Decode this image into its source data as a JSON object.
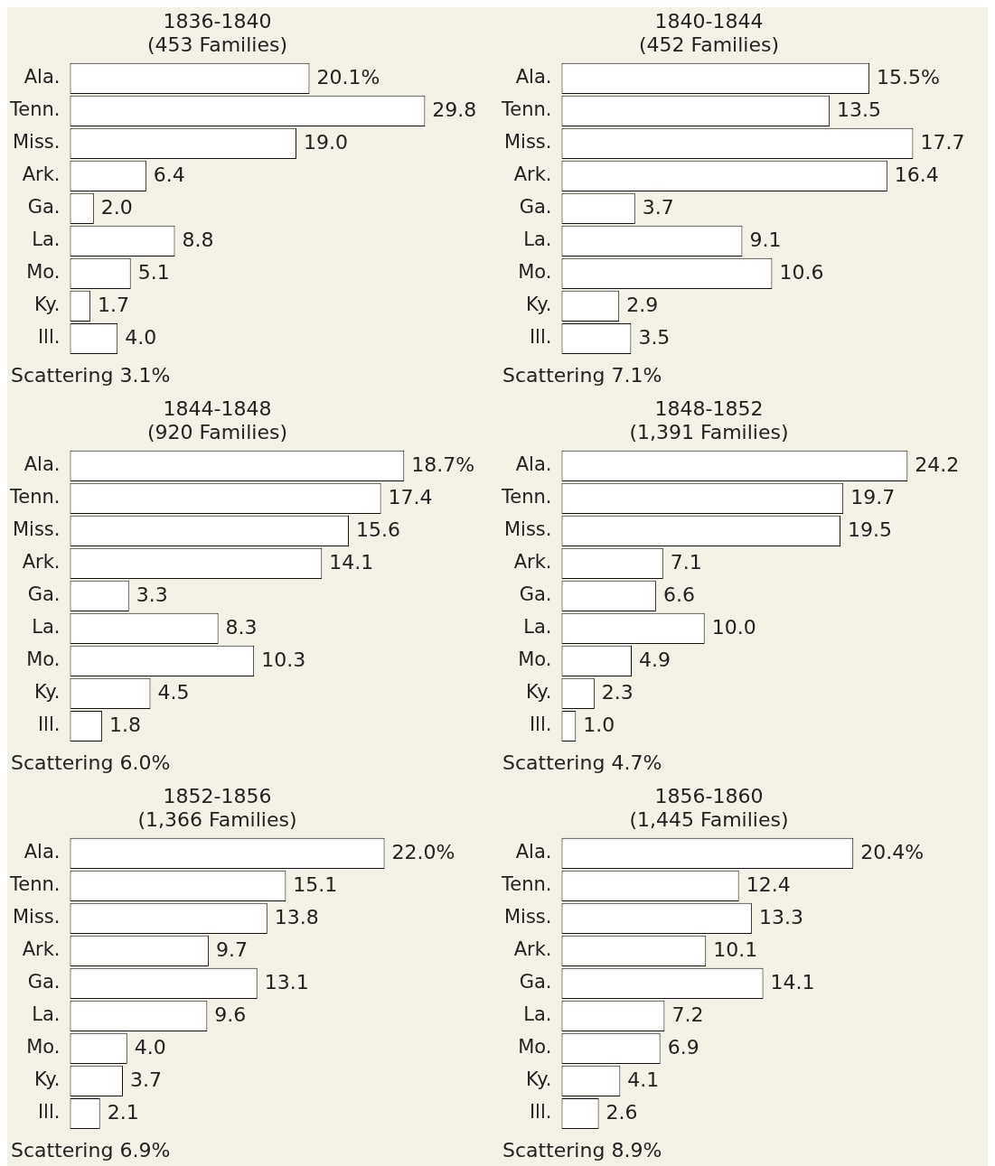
{
  "chart_data": [
    {
      "type": "bar",
      "orientation": "horizontal",
      "title": "1836-1840",
      "subtitle": "(453 Families)",
      "categories": [
        "Ala.",
        "Tenn.",
        "Miss.",
        "Ark.",
        "Ga.",
        "La.",
        "Mo.",
        "Ky.",
        "Ill."
      ],
      "values": [
        20.1,
        29.8,
        19.0,
        6.4,
        2.0,
        8.8,
        5.1,
        1.7,
        4.0
      ],
      "value_labels": [
        "20.1%",
        "29.8",
        "19.0",
        "6.4",
        "2.0",
        "8.8",
        "5.1",
        "1.7",
        "4.0"
      ],
      "color": "#ffffff",
      "tick_labels": "y",
      "legend": false,
      "annotations": [
        "Scattering 3.1%"
      ]
    },
    {
      "type": "bar",
      "orientation": "horizontal",
      "title": "1840-1844",
      "subtitle": "(452 Families)",
      "categories": [
        "Ala.",
        "Tenn.",
        "Miss.",
        "Ark.",
        "Ga.",
        "La.",
        "Mo.",
        "Ky.",
        "Ill."
      ],
      "values": [
        15.5,
        13.5,
        17.7,
        16.4,
        3.7,
        9.1,
        10.6,
        2.9,
        3.5
      ],
      "value_labels": [
        "15.5%",
        "13.5",
        "17.7",
        "16.4",
        "3.7",
        "9.1",
        "10.6",
        "2.9",
        "3.5"
      ],
      "color": "#ffffff",
      "tick_labels": "y",
      "legend": false,
      "annotations": [
        "Scattering 7.1%"
      ]
    },
    {
      "type": "bar",
      "orientation": "horizontal",
      "title": "1844-1848",
      "subtitle": "(920 Families)",
      "categories": [
        "Ala.",
        "Tenn.",
        "Miss.",
        "Ark.",
        "Ga.",
        "La.",
        "Mo.",
        "Ky.",
        "Ill."
      ],
      "values": [
        18.7,
        17.4,
        15.6,
        14.1,
        3.3,
        8.3,
        10.3,
        4.5,
        1.8
      ],
      "value_labels": [
        "18.7%",
        "17.4",
        "15.6",
        "14.1",
        "3.3",
        "8.3",
        "10.3",
        "4.5",
        "1.8"
      ],
      "color": "#ffffff",
      "tick_labels": "y",
      "legend": false,
      "annotations": [
        "Scattering 6.0%"
      ]
    },
    {
      "type": "bar",
      "orientation": "horizontal",
      "title": "1848-1852",
      "subtitle": "(1,391 Families)",
      "categories": [
        "Ala.",
        "Tenn.",
        "Miss.",
        "Ark.",
        "Ga.",
        "La.",
        "Mo.",
        "Ky.",
        "Ill."
      ],
      "values": [
        24.2,
        19.7,
        19.5,
        7.1,
        6.6,
        10.0,
        4.9,
        2.3,
        1.0
      ],
      "value_labels": [
        "24.2",
        "19.7",
        "19.5",
        "7.1",
        "6.6",
        "10.0",
        "4.9",
        "2.3",
        "1.0"
      ],
      "color": "#ffffff",
      "tick_labels": "y",
      "legend": false,
      "annotations": [
        "Scattering 4.7%"
      ]
    },
    {
      "type": "bar",
      "orientation": "horizontal",
      "title": "1852-1856",
      "subtitle": "(1,366 Families)",
      "categories": [
        "Ala.",
        "Tenn.",
        "Miss.",
        "Ark.",
        "Ga.",
        "La.",
        "Mo.",
        "Ky.",
        "Ill."
      ],
      "values": [
        22.0,
        15.1,
        13.8,
        9.7,
        13.1,
        9.6,
        4.0,
        3.7,
        2.1
      ],
      "value_labels": [
        "22.0%",
        "15.1",
        "13.8",
        "9.7",
        "13.1",
        "9.6",
        "4.0",
        "3.7",
        "2.1"
      ],
      "color": "#ffffff",
      "tick_labels": "y",
      "legend": false,
      "annotations": [
        "Scattering 6.9%"
      ]
    },
    {
      "type": "bar",
      "orientation": "horizontal",
      "title": "1856-1860",
      "subtitle": "(1,445 Families)",
      "categories": [
        "Ala.",
        "Tenn.",
        "Miss.",
        "Ark.",
        "Ga.",
        "La.",
        "Mo.",
        "Ky.",
        "Ill."
      ],
      "values": [
        20.4,
        12.4,
        13.3,
        10.1,
        14.1,
        7.2,
        6.9,
        4.1,
        2.6
      ],
      "value_labels": [
        "20.4%",
        "12.4",
        "13.3",
        "10.1",
        "14.1",
        "7.2",
        "6.9",
        "4.1",
        "2.6"
      ],
      "color": "#ffffff",
      "tick_labels": "y",
      "legend": false,
      "annotations": [
        "Scattering 8.9%"
      ]
    }
  ]
}
